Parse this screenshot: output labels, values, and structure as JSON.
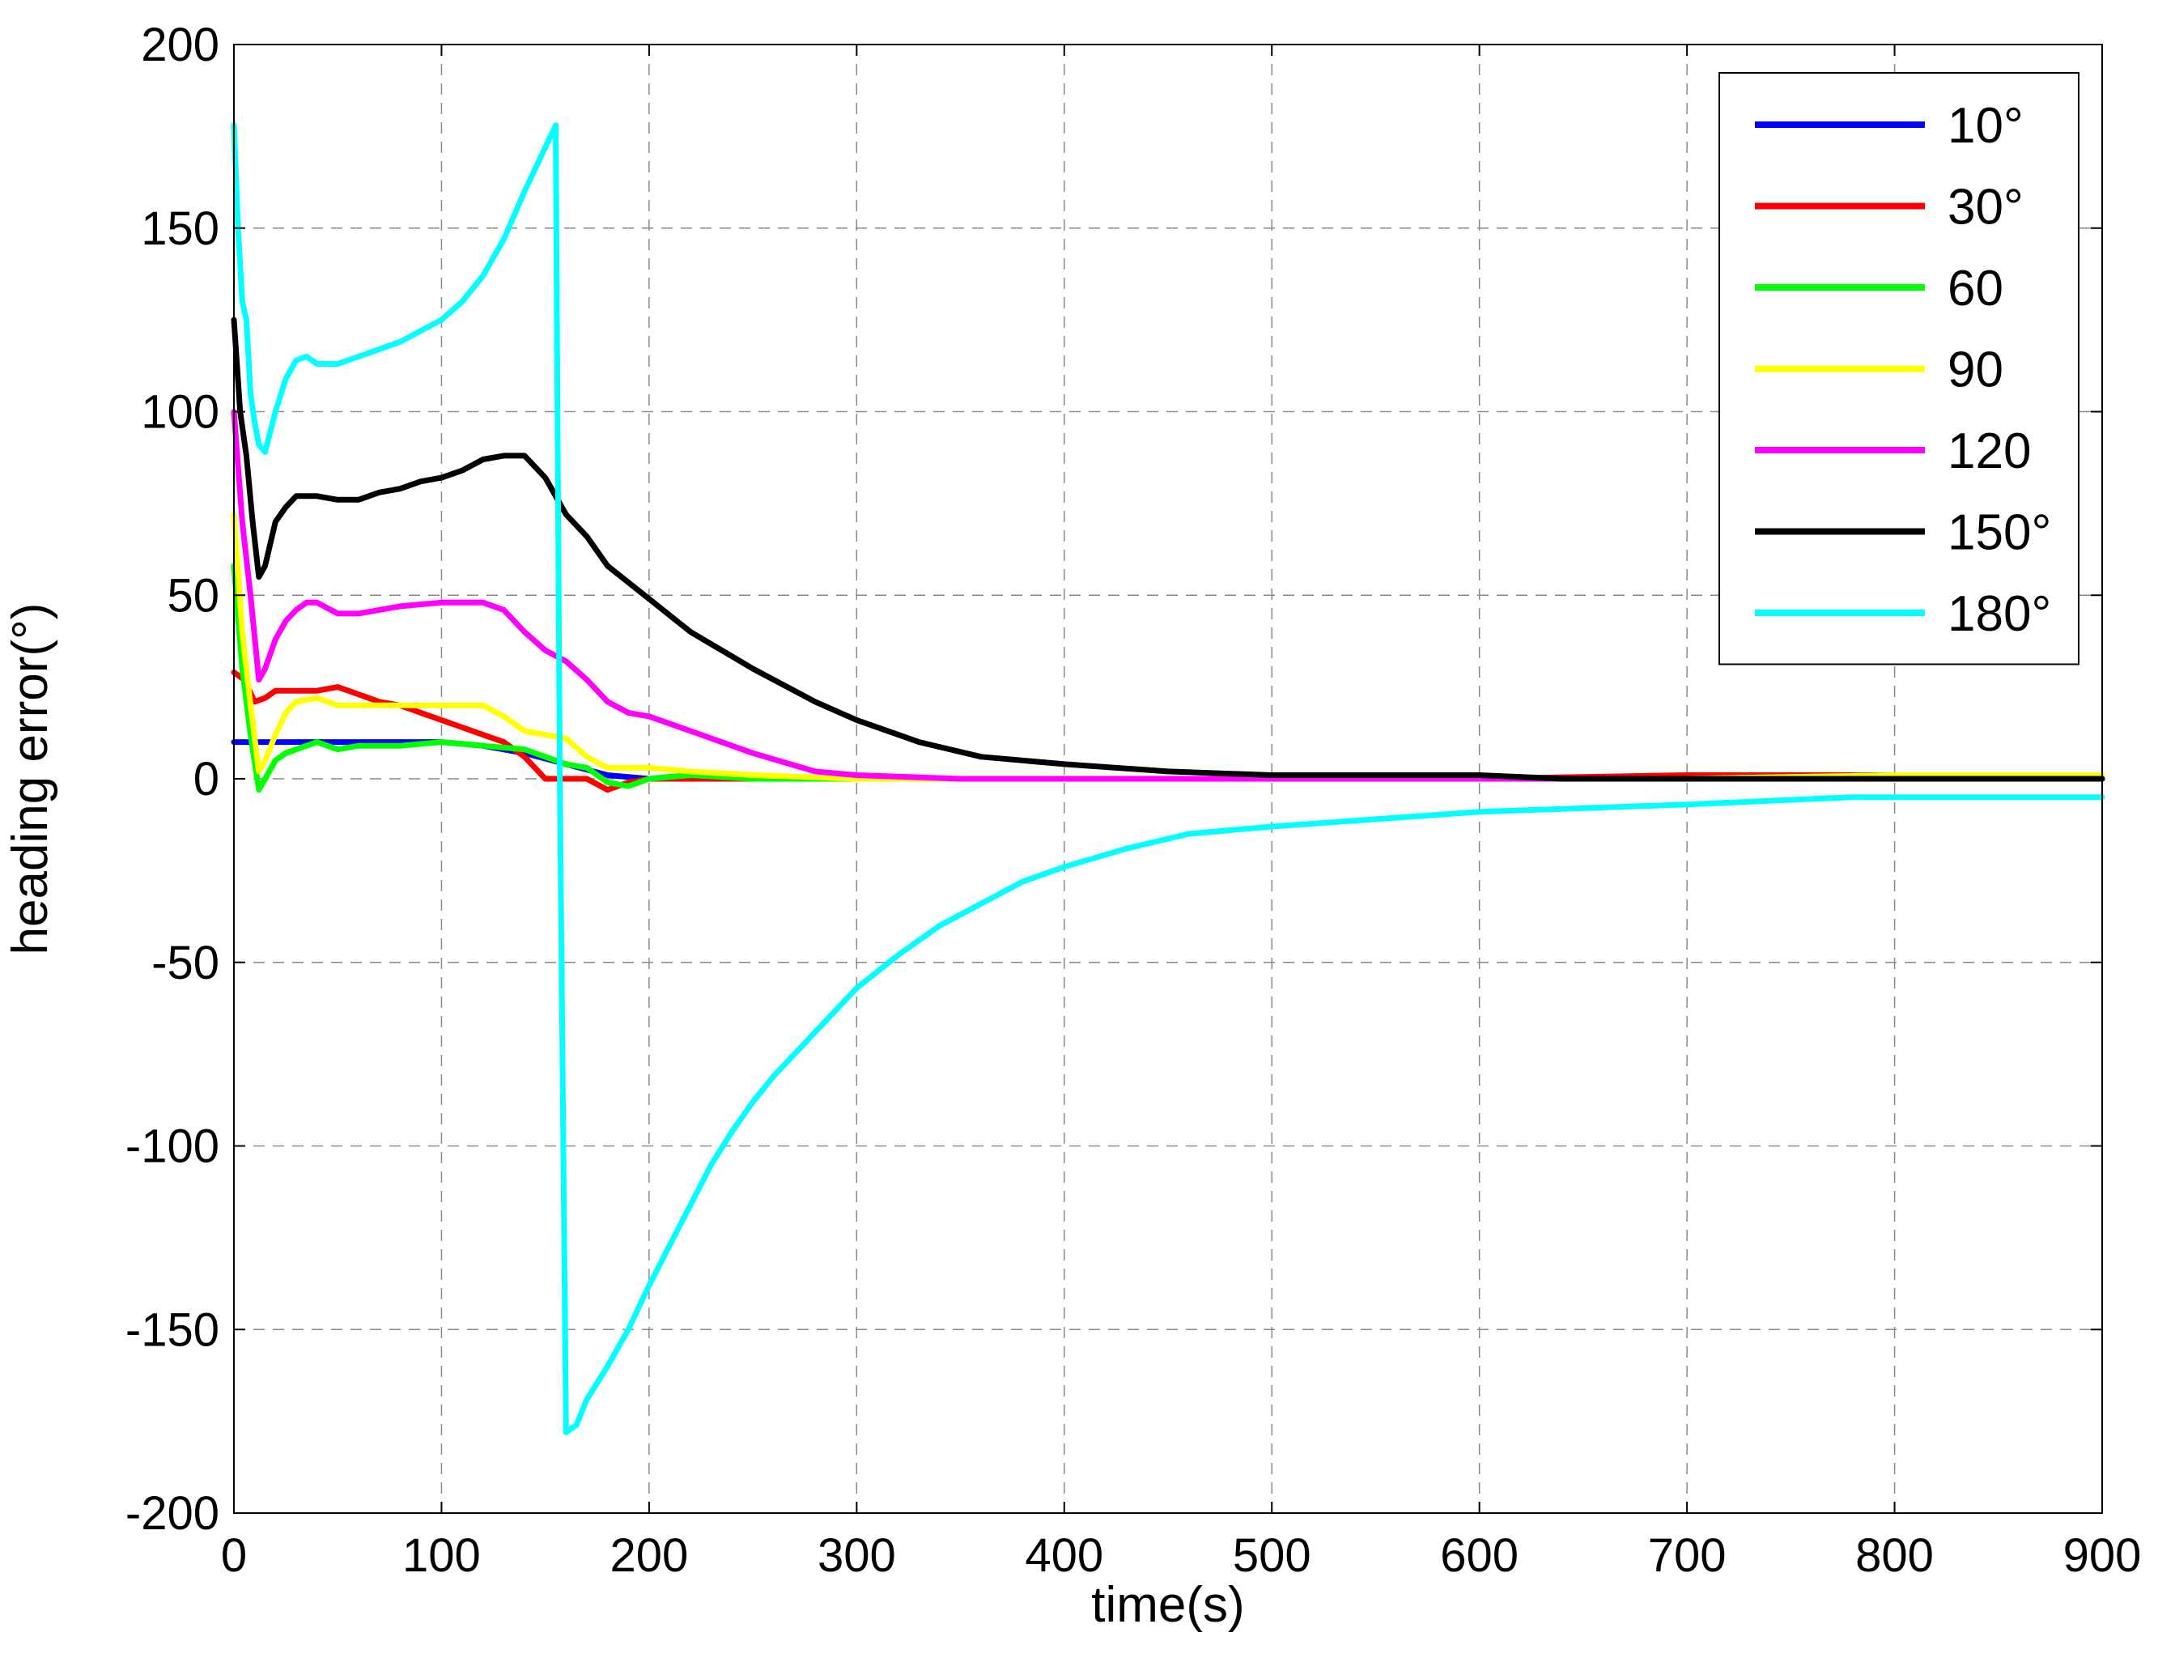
{
  "chart_data": {
    "type": "line",
    "title": "",
    "xlabel": "time(s)",
    "ylabel": "heading error(°)",
    "xlim": [
      0,
      900
    ],
    "ylim": [
      -200,
      200
    ],
    "xticks": [
      0,
      100,
      200,
      300,
      400,
      500,
      600,
      700,
      800,
      900
    ],
    "yticks": [
      200,
      150,
      100,
      50,
      0,
      -50,
      -100,
      -150,
      -200
    ],
    "xtick_labels": [
      "0",
      "100",
      "200",
      "300",
      "400",
      "500",
      "600",
      "700",
      "800",
      "900"
    ],
    "ytick_labels": [
      "200",
      "150",
      "100",
      "50",
      "0",
      "-50",
      "-100",
      "-150",
      "-200"
    ],
    "grid": true,
    "legend_position": "top-right",
    "series": [
      {
        "name": "10°",
        "color": "#0000ff",
        "x": [
          0,
          20,
          40,
          60,
          80,
          100,
          120,
          140,
          160,
          180,
          200,
          220,
          250,
          300,
          400,
          500,
          600,
          700,
          800,
          900
        ],
        "y": [
          10,
          10,
          10,
          10,
          10,
          10,
          9,
          7,
          4,
          1,
          0,
          1,
          0,
          0,
          0,
          0,
          0,
          0,
          0,
          0
        ]
      },
      {
        "name": "30°",
        "color": "#ff0000",
        "x": [
          0,
          5,
          10,
          15,
          20,
          30,
          40,
          50,
          60,
          70,
          80,
          90,
          100,
          110,
          120,
          130,
          140,
          150,
          160,
          170,
          180,
          190,
          200,
          220,
          250,
          300,
          350,
          400,
          500,
          600,
          700,
          800,
          900
        ],
        "y": [
          29,
          27,
          21,
          22,
          24,
          24,
          24,
          25,
          23,
          21,
          20,
          18,
          16,
          14,
          12,
          10,
          6,
          0,
          0,
          0,
          -3,
          -1,
          0,
          0,
          0,
          0,
          0,
          0,
          0,
          0,
          1,
          1,
          1
        ]
      },
      {
        "name": "60",
        "color": "#00ff00",
        "x": [
          0,
          4,
          8,
          12,
          15,
          20,
          25,
          30,
          40,
          50,
          60,
          80,
          100,
          120,
          140,
          150,
          160,
          170,
          180,
          190,
          200,
          220,
          250,
          300,
          400,
          500,
          600,
          700,
          800,
          900
        ],
        "y": [
          58,
          30,
          12,
          -3,
          0,
          5,
          7,
          8,
          10,
          8,
          9,
          9,
          10,
          9,
          8,
          6,
          4,
          3,
          -1,
          -2,
          0,
          1,
          0,
          0,
          0,
          0,
          0,
          0,
          1,
          1
        ]
      },
      {
        "name": "90",
        "color": "#ffff00",
        "x": [
          0,
          4,
          8,
          12,
          15,
          20,
          25,
          30,
          40,
          50,
          60,
          80,
          100,
          120,
          130,
          140,
          160,
          170,
          180,
          200,
          220,
          250,
          300,
          400,
          500,
          600,
          700,
          800,
          900
        ],
        "y": [
          72,
          40,
          20,
          2,
          5,
          12,
          18,
          21,
          22,
          20,
          20,
          20,
          20,
          20,
          17,
          13,
          11,
          6,
          3,
          3,
          2,
          1,
          0,
          0,
          0,
          0,
          0,
          1,
          1
        ]
      },
      {
        "name": "120",
        "color": "#ff00ff",
        "x": [
          0,
          4,
          8,
          12,
          15,
          20,
          25,
          30,
          35,
          40,
          50,
          60,
          80,
          100,
          110,
          120,
          130,
          140,
          150,
          160,
          170,
          180,
          190,
          200,
          220,
          250,
          280,
          300,
          350,
          400,
          500,
          600,
          700,
          800,
          900
        ],
        "y": [
          100,
          70,
          50,
          27,
          30,
          38,
          43,
          46,
          48,
          48,
          45,
          45,
          47,
          48,
          48,
          48,
          46,
          40,
          35,
          32,
          27,
          21,
          18,
          17,
          13,
          7,
          2,
          1,
          0,
          0,
          0,
          0,
          0,
          0,
          0
        ]
      },
      {
        "name": "150°",
        "color": "#000000",
        "x": [
          0,
          3,
          6,
          9,
          12,
          15,
          20,
          25,
          30,
          40,
          50,
          60,
          70,
          80,
          90,
          100,
          110,
          120,
          130,
          140,
          150,
          160,
          170,
          180,
          200,
          220,
          250,
          280,
          300,
          330,
          360,
          400,
          450,
          500,
          600,
          640,
          700,
          800,
          900
        ],
        "y": [
          125,
          100,
          88,
          70,
          55,
          58,
          70,
          74,
          77,
          77,
          76,
          76,
          78,
          79,
          81,
          82,
          84,
          87,
          88,
          88,
          82,
          72,
          66,
          58,
          49,
          40,
          30,
          21,
          16,
          10,
          6,
          4,
          2,
          1,
          1,
          0,
          0,
          0,
          0
        ]
      },
      {
        "name": "180°",
        "color": "#00ffff",
        "x": [
          0,
          2,
          4,
          6,
          8,
          10,
          12,
          15,
          20,
          25,
          30,
          35,
          40,
          50,
          60,
          70,
          80,
          90,
          100,
          110,
          120,
          130,
          140,
          150,
          155,
          157,
          160,
          165,
          170,
          180,
          190,
          200,
          210,
          220,
          230,
          240,
          250,
          260,
          280,
          300,
          320,
          340,
          360,
          380,
          400,
          430,
          460,
          500,
          550,
          600,
          650,
          700,
          780,
          900
        ],
        "y": [
          178,
          150,
          130,
          125,
          105,
          97,
          91,
          89,
          100,
          109,
          114,
          115,
          113,
          113,
          115,
          117,
          119,
          122,
          125,
          130,
          137,
          147,
          160,
          172,
          178,
          0,
          -178,
          -176,
          -169,
          -160,
          -150,
          -138,
          -127,
          -116,
          -105,
          -96,
          -88,
          -81,
          -69,
          -57,
          -48,
          -40,
          -34,
          -28,
          -24,
          -19,
          -15,
          -13,
          -11,
          -9,
          -8,
          -7,
          -5,
          -5
        ]
      }
    ]
  }
}
